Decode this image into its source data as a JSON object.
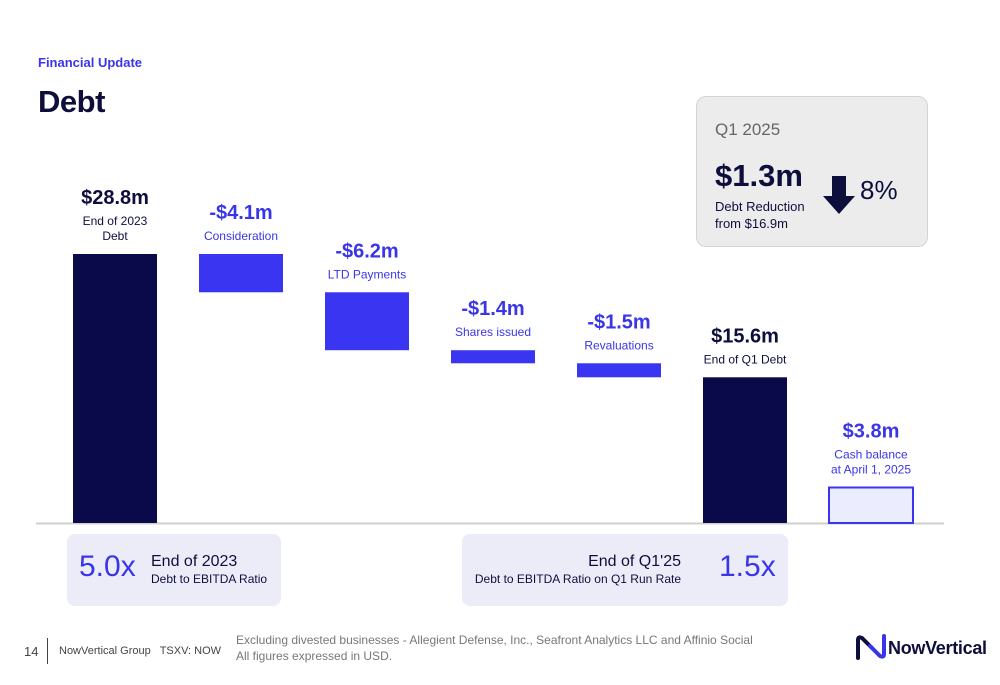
{
  "header": {
    "section_label": "Financial Update",
    "title": "Debt"
  },
  "highlight": {
    "period": "Q1 2025",
    "amount": "$1.3m",
    "description_line1": "Debt Reduction",
    "description_line2": "from $16.9m",
    "percent": "8%",
    "icon": "down-arrow-icon"
  },
  "chart_data": {
    "type": "bar",
    "subtype": "waterfall",
    "unit": "$m",
    "ylim": [
      0,
      28.8
    ],
    "grid": false,
    "bars": [
      {
        "value_label": "$28.8m",
        "label_lines": [
          "End of 2023",
          "Debt"
        ],
        "start": 0,
        "end": 28.8,
        "kind": "total"
      },
      {
        "value_label": "-$4.1m",
        "label_lines": [
          "Consideration"
        ],
        "start": 28.8,
        "end": 24.7,
        "kind": "decrease"
      },
      {
        "value_label": "-$6.2m",
        "label_lines": [
          "LTD Payments"
        ],
        "start": 24.7,
        "end": 18.5,
        "kind": "decrease"
      },
      {
        "value_label": "-$1.4m",
        "label_lines": [
          "Shares issued"
        ],
        "start": 18.5,
        "end": 17.1,
        "kind": "decrease"
      },
      {
        "value_label": "-$1.5m",
        "label_lines": [
          "Revaluations"
        ],
        "start": 17.1,
        "end": 15.6,
        "kind": "decrease"
      },
      {
        "value_label": "$15.6m",
        "label_lines": [
          "End of Q1 Debt"
        ],
        "start": 0,
        "end": 15.6,
        "kind": "total"
      },
      {
        "value_label": "$3.8m",
        "label_lines": [
          "Cash balance",
          "at April 1, 2025"
        ],
        "start": 0,
        "end": 3.8,
        "kind": "cash"
      }
    ]
  },
  "ratios": {
    "left": {
      "value": "5.0x",
      "title": "End of 2023",
      "subtitle": "Debt to EBITDA Ratio"
    },
    "right": {
      "value": "1.5x",
      "title": "End of Q1'25",
      "subtitle": "Debt to EBITDA Ratio on Q1 Run Rate"
    }
  },
  "footer": {
    "page_number": "14",
    "company": "NowVertical Group",
    "ticker": "TSXV: NOW",
    "note_line1": "Excluding divested businesses - Allegient Defense, Inc., Seafront Analytics LLC and Affinio Social",
    "note_line2": "All figures expressed in USD.",
    "logo_text": "NowVertical"
  },
  "colors": {
    "navy": "#0a0a4a",
    "blue": "#3a35f0",
    "cash_fill": "#ececff",
    "accent_text": "#3a35e8"
  }
}
